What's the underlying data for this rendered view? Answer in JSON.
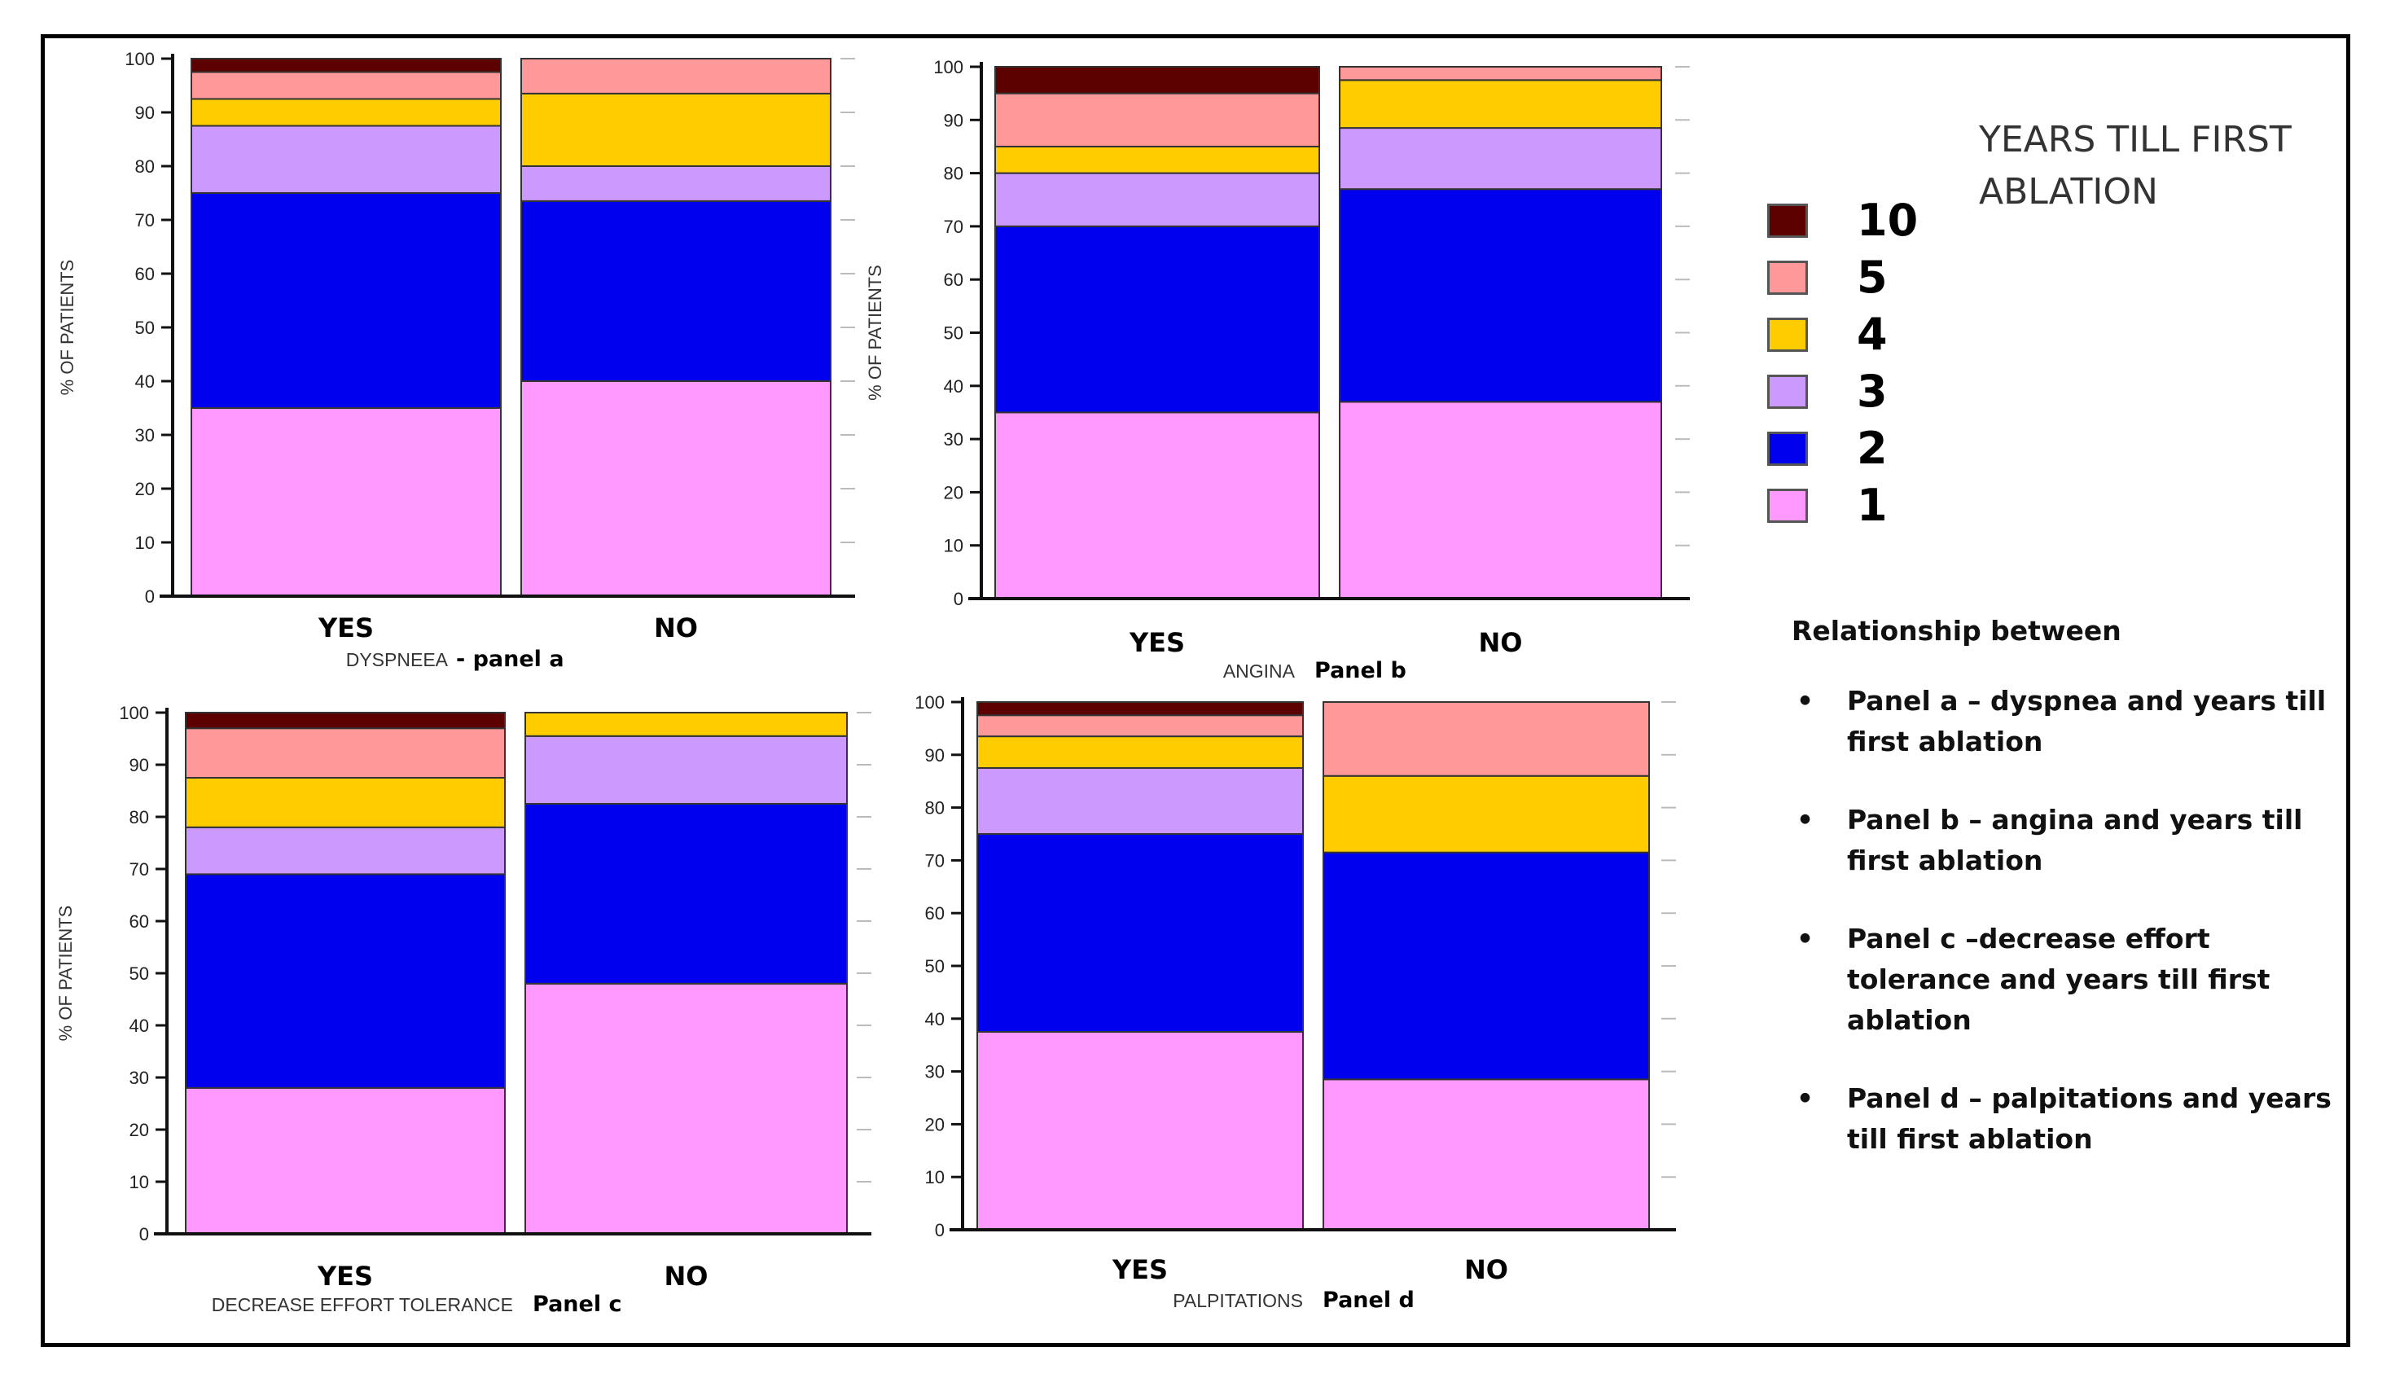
{
  "colors": {
    "10": "#5c0000",
    "5": "#ff9999",
    "4": "#ffcc00",
    "3": "#cc99ff",
    "2": "#0000ee",
    "1": "#ff99ff",
    "axis": "#111111",
    "grid": "#bbbbbb"
  },
  "legend": {
    "title": "YEARS TILL FIRST ABLATION",
    "items": [
      {
        "label": "10",
        "color": "#5c0000"
      },
      {
        "label": "5",
        "color": "#ff9999"
      },
      {
        "label": "4",
        "color": "#ffcc00"
      },
      {
        "label": "3",
        "color": "#cc99ff"
      },
      {
        "label": "2",
        "color": "#0000ee"
      },
      {
        "label": "1",
        "color": "#ff99ff"
      }
    ]
  },
  "description": {
    "heading": "Relationship between",
    "bullet": "•",
    "items": [
      "Panel a – dyspnea and years till first ablation",
      "Panel b – angina and years till first ablation",
      "Panel c –decrease effort tolerance and years till first ablation",
      "Panel d – palpitations and years till first ablation"
    ]
  },
  "chart_data": [
    {
      "type": "bar",
      "stacked": true,
      "panel": "a",
      "xlabel": "DYSPNEEA",
      "panel_label": "- panel a",
      "ylabel": "% OF PATIENTS",
      "categories": [
        "YES",
        "NO"
      ],
      "ylim": [
        0,
        100
      ],
      "yticks": [
        0,
        10,
        20,
        30,
        40,
        50,
        60,
        70,
        80,
        90,
        100
      ],
      "series": [
        {
          "name": "1",
          "values": [
            35,
            40
          ]
        },
        {
          "name": "2",
          "values": [
            40,
            33.5
          ]
        },
        {
          "name": "3",
          "values": [
            12.5,
            6.5
          ]
        },
        {
          "name": "4",
          "values": [
            5,
            13.5
          ]
        },
        {
          "name": "5",
          "values": [
            5,
            6.5
          ]
        },
        {
          "name": "10",
          "values": [
            2.5,
            0
          ]
        }
      ]
    },
    {
      "type": "bar",
      "stacked": true,
      "panel": "b",
      "xlabel": "ANGINA",
      "panel_label": "Panel b",
      "ylabel": "% OF PATIENTS",
      "categories": [
        "YES",
        "NO"
      ],
      "ylim": [
        0,
        100
      ],
      "yticks": [
        0,
        10,
        20,
        30,
        40,
        50,
        60,
        70,
        80,
        90,
        100
      ],
      "series": [
        {
          "name": "1",
          "values": [
            35,
            37
          ]
        },
        {
          "name": "2",
          "values": [
            35,
            40
          ]
        },
        {
          "name": "3",
          "values": [
            10,
            11.5
          ]
        },
        {
          "name": "4",
          "values": [
            5,
            9
          ]
        },
        {
          "name": "5",
          "values": [
            10,
            2.5
          ]
        },
        {
          "name": "10",
          "values": [
            5,
            0
          ]
        }
      ]
    },
    {
      "type": "bar",
      "stacked": true,
      "panel": "c",
      "xlabel": "DECREASE EFFORT TOLERANCE",
      "panel_label": "Panel c",
      "ylabel": "% OF PATIENTS",
      "categories": [
        "YES",
        "NO"
      ],
      "ylim": [
        0,
        100
      ],
      "yticks": [
        0,
        10,
        20,
        30,
        40,
        50,
        60,
        70,
        80,
        90,
        100
      ],
      "series": [
        {
          "name": "1",
          "values": [
            28,
            48
          ]
        },
        {
          "name": "2",
          "values": [
            41,
            34.5
          ]
        },
        {
          "name": "3",
          "values": [
            9,
            13
          ]
        },
        {
          "name": "4",
          "values": [
            9.5,
            4.5
          ]
        },
        {
          "name": "5",
          "values": [
            9.5,
            0
          ]
        },
        {
          "name": "10",
          "values": [
            3,
            0
          ]
        }
      ]
    },
    {
      "type": "bar",
      "stacked": true,
      "panel": "d",
      "xlabel": "PALPITATIONS",
      "panel_label": "Panel d",
      "ylabel": "",
      "categories": [
        "YES",
        "NO"
      ],
      "ylim": [
        0,
        100
      ],
      "yticks": [
        0,
        10,
        20,
        30,
        40,
        50,
        60,
        70,
        80,
        90,
        100
      ],
      "series": [
        {
          "name": "1",
          "values": [
            37.5,
            28.5
          ]
        },
        {
          "name": "2",
          "values": [
            37.5,
            43
          ]
        },
        {
          "name": "3",
          "values": [
            12.5,
            0
          ]
        },
        {
          "name": "4",
          "values": [
            6,
            14.5
          ]
        },
        {
          "name": "5",
          "values": [
            4,
            14
          ]
        },
        {
          "name": "10",
          "values": [
            2.5,
            0
          ]
        }
      ]
    }
  ]
}
